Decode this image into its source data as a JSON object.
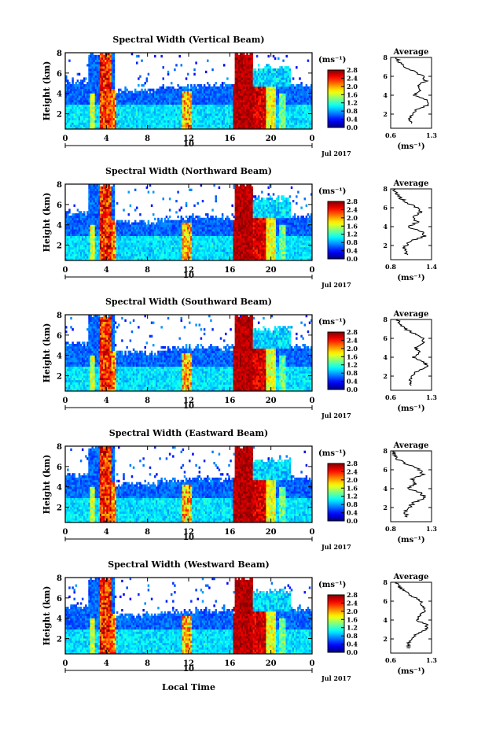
{
  "figure": {
    "xlabel": "Local Time"
  },
  "chart_data": [
    {
      "type": "heatmap",
      "title": "Spectral Width (Vertical Beam)",
      "ylabel": "Height (km)",
      "x_ticks": [
        "0",
        "4",
        "8",
        "12",
        "16",
        "20",
        "0"
      ],
      "y_ticks": [
        "2",
        "4",
        "6",
        "8"
      ],
      "xlim": [
        0,
        24
      ],
      "ylim": [
        0.5,
        8
      ],
      "date_labels": [
        "10",
        "Jul 2017"
      ],
      "colorbar": {
        "unit": "(ms⁻¹)",
        "ticks": [
          "0.0",
          "0.4",
          "0.8",
          "1.2",
          "1.6",
          "2.0",
          "2.4",
          "2.8"
        ],
        "range": [
          0,
          2.8
        ]
      },
      "profile": {
        "title": "Average",
        "x_ticks": [
          "0.6",
          "1.3"
        ],
        "xlim": [
          0.6,
          1.3
        ],
        "xlabel": "(ms⁻¹)",
        "y_ticks": [
          "2",
          "4",
          "6",
          "8"
        ],
        "heights": [
          1,
          1.5,
          2,
          2.5,
          3,
          3.5,
          4,
          4.5,
          5,
          5.5,
          6,
          6.5,
          7,
          7.5,
          8
        ],
        "values": [
          0.95,
          0.92,
          0.97,
          1.05,
          1.25,
          1.2,
          1.0,
          1.12,
          1.05,
          1.2,
          1.15,
          1.0,
          0.85,
          0.75,
          0.7
        ]
      }
    },
    {
      "type": "heatmap",
      "title": "Spectral Width (Northward Beam)",
      "ylabel": "Height (km)",
      "x_ticks": [
        "0",
        "4",
        "8",
        "12",
        "16",
        "20",
        "0"
      ],
      "y_ticks": [
        "2",
        "4",
        "6",
        "8"
      ],
      "xlim": [
        0,
        24
      ],
      "ylim": [
        0.5,
        8
      ],
      "date_labels": [
        "10",
        "Jul 2017"
      ],
      "colorbar": {
        "unit": "(ms⁻¹)",
        "ticks": [
          "0.0",
          "0.4",
          "0.8",
          "1.2",
          "1.6",
          "2.0",
          "2.4",
          "2.8"
        ],
        "range": [
          0,
          2.8
        ]
      },
      "profile": {
        "title": "Average",
        "x_ticks": [
          "0.8",
          "1.4"
        ],
        "xlim": [
          0.8,
          1.4
        ],
        "xlabel": "(ms⁻¹)",
        "y_ticks": [
          "2",
          "4",
          "6",
          "8"
        ],
        "heights": [
          1,
          1.5,
          2,
          2.5,
          3,
          3.5,
          4,
          4.5,
          5,
          5.5,
          6,
          6.5,
          7,
          7.5,
          8
        ],
        "values": [
          1.05,
          1.0,
          1.02,
          1.1,
          1.3,
          1.25,
          1.05,
          1.2,
          1.1,
          1.25,
          1.18,
          1.05,
          0.95,
          0.88,
          0.85
        ]
      }
    },
    {
      "type": "heatmap",
      "title": "Spectral Width (Southward Beam)",
      "ylabel": "Height (km)",
      "x_ticks": [
        "0",
        "4",
        "8",
        "12",
        "16",
        "20",
        "0"
      ],
      "y_ticks": [
        "2",
        "4",
        "6",
        "8"
      ],
      "xlim": [
        0,
        24
      ],
      "ylim": [
        0.5,
        8
      ],
      "date_labels": [
        "10",
        "Jul 2017"
      ],
      "colorbar": {
        "unit": "(ms⁻¹)",
        "ticks": [
          "0.0",
          "0.4",
          "0.8",
          "1.2",
          "1.6",
          "2.0",
          "2.4",
          "2.8"
        ],
        "range": [
          0,
          2.8
        ]
      },
      "profile": {
        "title": "Average",
        "x_ticks": [
          "0.6",
          "1.3"
        ],
        "xlim": [
          0.6,
          1.3
        ],
        "xlabel": "(ms⁻¹)",
        "y_ticks": [
          "2",
          "4",
          "6",
          "8"
        ],
        "heights": [
          1,
          1.5,
          2,
          2.5,
          3,
          3.5,
          4,
          4.5,
          5,
          5.5,
          6,
          6.5,
          7,
          7.5,
          8
        ],
        "values": [
          0.95,
          0.92,
          0.97,
          1.05,
          1.22,
          1.18,
          0.98,
          1.1,
          1.02,
          1.18,
          1.14,
          1.0,
          0.85,
          0.75,
          0.72
        ]
      }
    },
    {
      "type": "heatmap",
      "title": "Spectral Width (Eastward Beam)",
      "ylabel": "Height (km)",
      "x_ticks": [
        "0",
        "4",
        "8",
        "12",
        "16",
        "20",
        "0"
      ],
      "y_ticks": [
        "2",
        "4",
        "6",
        "8"
      ],
      "xlim": [
        0,
        24
      ],
      "ylim": [
        0.5,
        8
      ],
      "date_labels": [
        "10",
        "Jul 2017"
      ],
      "colorbar": {
        "unit": "(ms⁻¹)",
        "ticks": [
          "0.0",
          "0.4",
          "0.8",
          "1.2",
          "1.6",
          "2.0",
          "2.4",
          "2.8"
        ],
        "range": [
          0,
          2.8
        ]
      },
      "profile": {
        "title": "Average",
        "x_ticks": [
          "0.8",
          "1.3"
        ],
        "xlim": [
          0.8,
          1.3
        ],
        "xlabel": "(ms⁻¹)",
        "y_ticks": [
          "2",
          "4",
          "6",
          "8"
        ],
        "heights": [
          1,
          1.5,
          2,
          2.5,
          3,
          3.5,
          4,
          4.5,
          5,
          5.5,
          6,
          6.5,
          7,
          7.5,
          8
        ],
        "values": [
          1.0,
          0.98,
          1.02,
          1.08,
          1.22,
          1.18,
          1.0,
          1.12,
          1.05,
          1.2,
          1.15,
          1.02,
          0.9,
          0.85,
          0.82
        ]
      }
    },
    {
      "type": "heatmap",
      "title": "Spectral Width (Westward Beam)",
      "ylabel": "Height (km)",
      "x_ticks": [
        "0",
        "4",
        "8",
        "12",
        "16",
        "20",
        "0"
      ],
      "y_ticks": [
        "2",
        "4",
        "6",
        "8"
      ],
      "xlim": [
        0,
        24
      ],
      "ylim": [
        0.5,
        8
      ],
      "date_labels": [
        "10",
        "Jul 2017"
      ],
      "colorbar": {
        "unit": "(ms⁻¹)",
        "ticks": [
          "0.0",
          "0.4",
          "0.8",
          "1.2",
          "1.6",
          "2.0",
          "2.4",
          "2.8"
        ],
        "range": [
          0,
          2.8
        ]
      },
      "profile": {
        "title": "Average",
        "x_ticks": [
          "0.6",
          "1.3"
        ],
        "xlim": [
          0.6,
          1.3
        ],
        "xlabel": "(ms⁻¹)",
        "y_ticks": [
          "2",
          "4",
          "6",
          "8"
        ],
        "heights": [
          1,
          1.5,
          2,
          2.5,
          3,
          3.5,
          4,
          4.5,
          5,
          5.5,
          6,
          6.5,
          7,
          7.5,
          8
        ],
        "values": [
          0.92,
          0.9,
          0.95,
          1.05,
          1.2,
          1.22,
          1.05,
          1.1,
          1.18,
          1.15,
          1.12,
          0.98,
          0.85,
          0.75,
          0.7
        ]
      }
    }
  ]
}
